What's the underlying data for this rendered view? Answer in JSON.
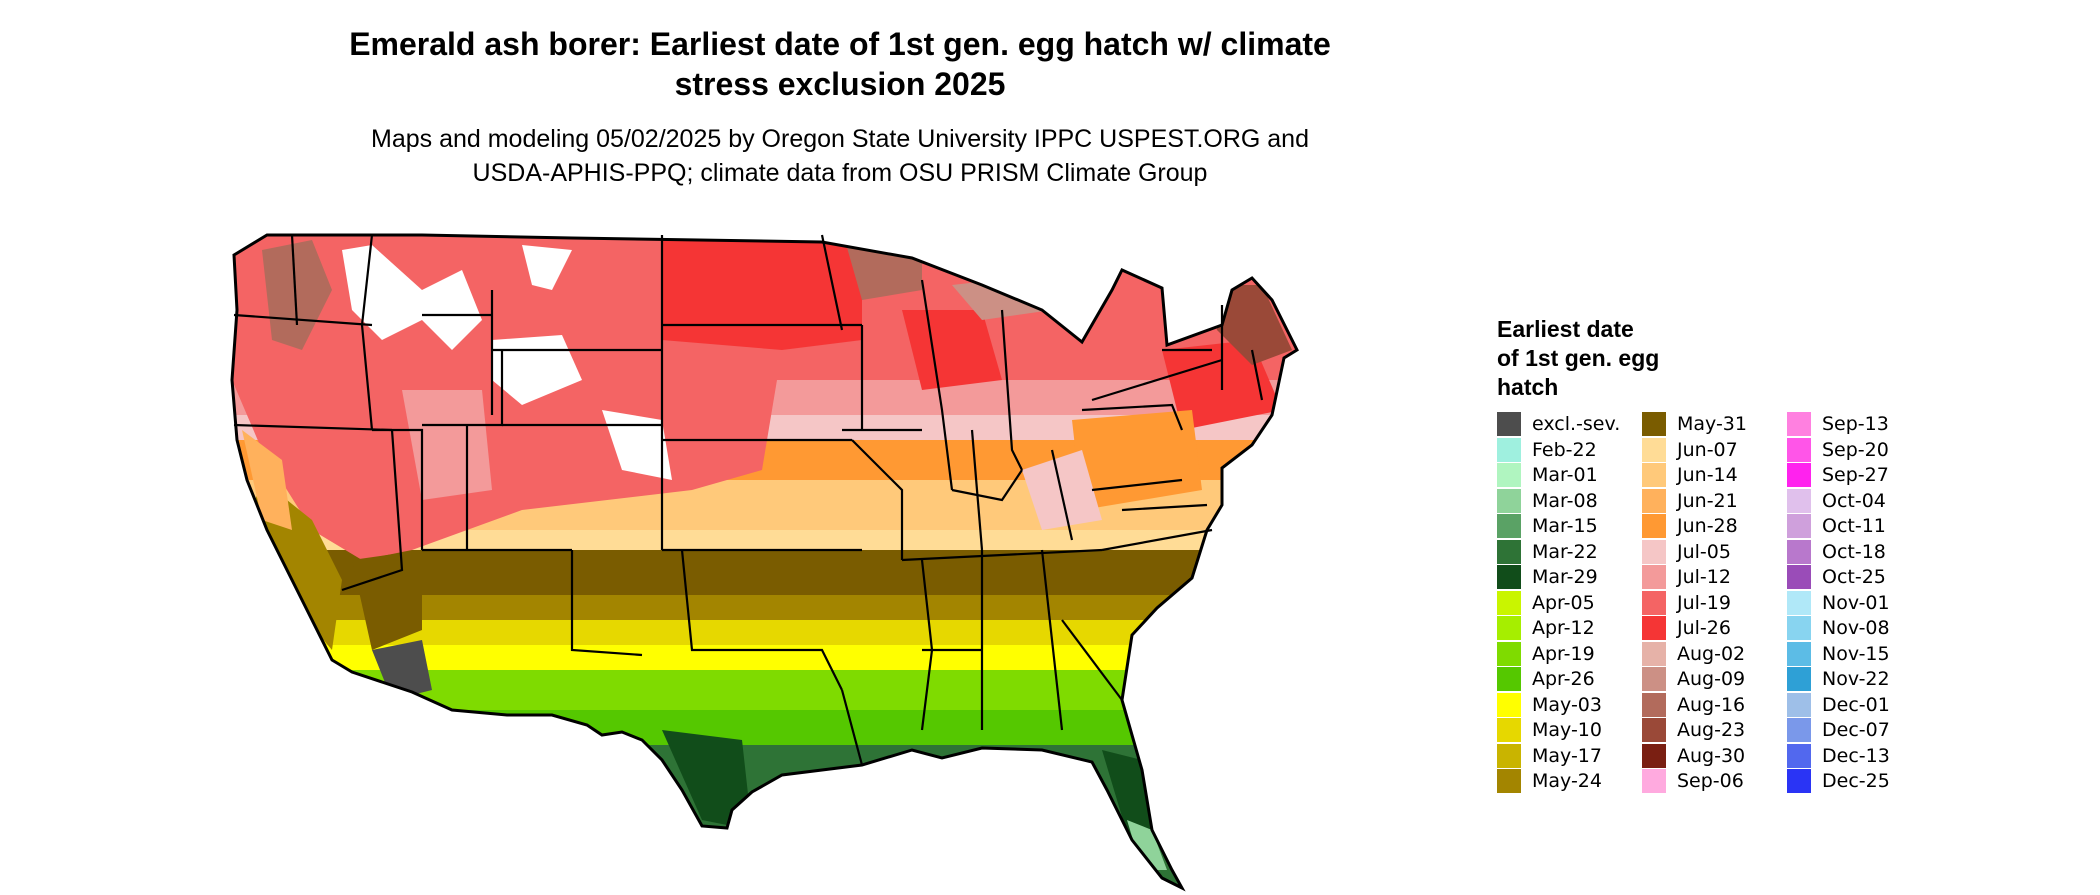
{
  "title_line1": "Emerald ash borer: Earliest date of 1st gen. egg hatch w/ climate",
  "title_line2": "stress exclusion 2025",
  "subtitle_line1": "Maps and modeling 05/02/2025 by Oregon State University IPPC USPEST.ORG and",
  "subtitle_line2": "USDA-APHIS-PPQ; climate data from OSU PRISM Climate Group",
  "legend": {
    "title_line1": "Earliest date",
    "title_line2": "of 1st gen. egg",
    "title_line3": "hatch",
    "items": [
      {
        "label": "excl.-sev.",
        "color": "#4d4d4d"
      },
      {
        "label": "Feb-22",
        "color": "#9ff0df"
      },
      {
        "label": "Mar-01",
        "color": "#b0f5c0"
      },
      {
        "label": "Mar-08",
        "color": "#8fd39a"
      },
      {
        "label": "Mar-15",
        "color": "#5aa265"
      },
      {
        "label": "Mar-22",
        "color": "#2e7336"
      },
      {
        "label": "Mar-29",
        "color": "#114d1a"
      },
      {
        "label": "Apr-05",
        "color": "#c9f500"
      },
      {
        "label": "Apr-12",
        "color": "#a6ee00"
      },
      {
        "label": "Apr-19",
        "color": "#7fdb00"
      },
      {
        "label": "Apr-26",
        "color": "#55c800"
      },
      {
        "label": "May-03",
        "color": "#ffff00"
      },
      {
        "label": "May-10",
        "color": "#e6d800"
      },
      {
        "label": "May-17",
        "color": "#c9b400"
      },
      {
        "label": "May-24",
        "color": "#a38500"
      },
      {
        "label": "May-31",
        "color": "#7a5c00"
      },
      {
        "label": "Jun-07",
        "color": "#ffdc96"
      },
      {
        "label": "Jun-14",
        "color": "#ffc97a"
      },
      {
        "label": "Jun-21",
        "color": "#ffb15c"
      },
      {
        "label": "Jun-28",
        "color": "#ff9933"
      },
      {
        "label": "Jul-05",
        "color": "#f5c6c6"
      },
      {
        "label": "Jul-12",
        "color": "#f39a9a"
      },
      {
        "label": "Jul-19",
        "color": "#f46464"
      },
      {
        "label": "Jul-26",
        "color": "#f53535"
      },
      {
        "label": "Aug-02",
        "color": "#e6b2a8"
      },
      {
        "label": "Aug-09",
        "color": "#cc9085"
      },
      {
        "label": "Aug-16",
        "color": "#b26b5c"
      },
      {
        "label": "Aug-23",
        "color": "#9a4938"
      },
      {
        "label": "Aug-30",
        "color": "#7a1f12"
      },
      {
        "label": "Sep-06",
        "color": "#ffaadf"
      },
      {
        "label": "Sep-13",
        "color": "#ff80e0"
      },
      {
        "label": "Sep-20",
        "color": "#ff55e8"
      },
      {
        "label": "Sep-27",
        "color": "#ff22ee"
      },
      {
        "label": "Oct-04",
        "color": "#e0c0ec"
      },
      {
        "label": "Oct-11",
        "color": "#cfa0dc"
      },
      {
        "label": "Oct-18",
        "color": "#b878cc"
      },
      {
        "label": "Oct-25",
        "color": "#9a4cb8"
      },
      {
        "label": "Nov-01",
        "color": "#b0e8f8"
      },
      {
        "label": "Nov-08",
        "color": "#88d4f0"
      },
      {
        "label": "Nov-15",
        "color": "#5cbce6"
      },
      {
        "label": "Nov-22",
        "color": "#2ea0d6"
      },
      {
        "label": "Dec-01",
        "color": "#9ebfe8"
      },
      {
        "label": "Dec-07",
        "color": "#7a98ea"
      },
      {
        "label": "Dec-13",
        "color": "#5268ee"
      },
      {
        "label": "Dec-25",
        "color": "#2a34f5"
      }
    ]
  }
}
